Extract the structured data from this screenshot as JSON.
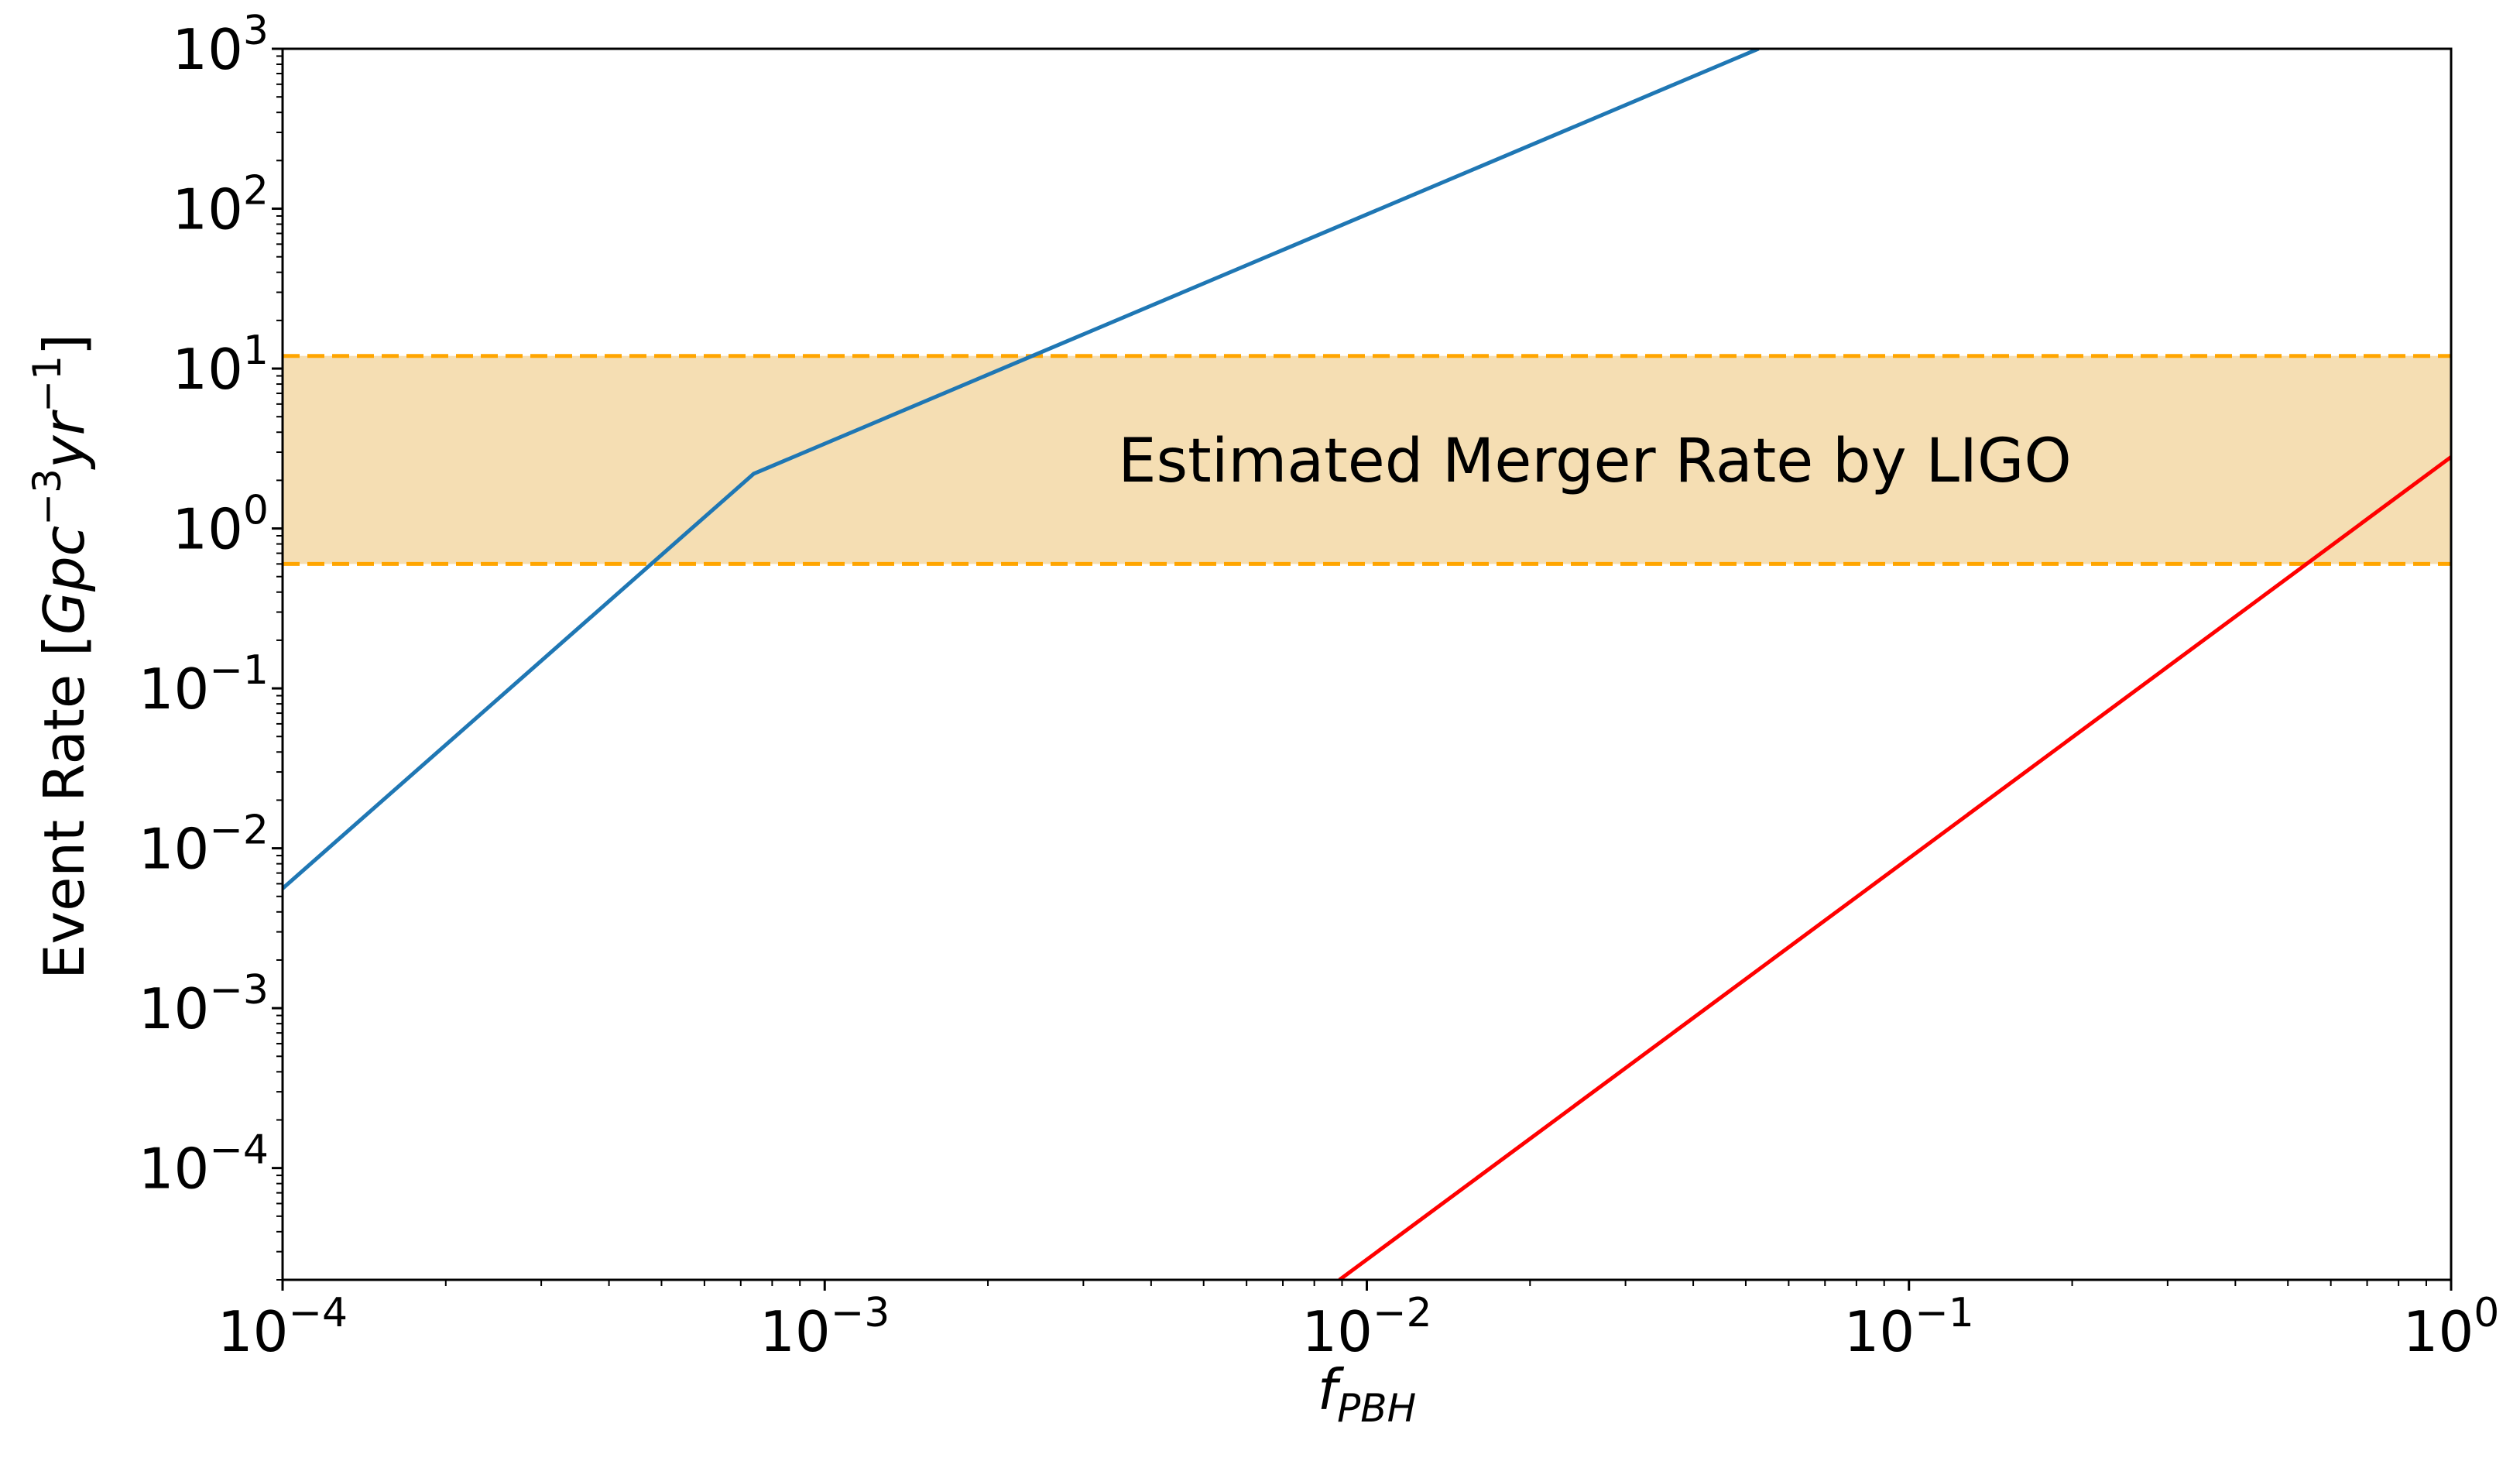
{
  "chart_data": {
    "type": "line",
    "title": "",
    "xlabel": "f",
    "xlabel_sub": "PBH",
    "ylabel": "Event Rate [",
    "ylabel_unit": {
      "g": "Gpc",
      "e1": "−3",
      "y": "yr",
      "e2": "−1",
      "close": "]"
    },
    "xscale": "log",
    "yscale": "log",
    "xlim": [
      0.0001,
      1
    ],
    "ylim": [
      2e-05,
      1000
    ],
    "grid": false,
    "x_ticks": [
      {
        "value": 0.0001,
        "base": "10",
        "exp": "−4"
      },
      {
        "value": 0.001,
        "base": "10",
        "exp": "−3"
      },
      {
        "value": 0.01,
        "base": "10",
        "exp": "−2"
      },
      {
        "value": 0.1,
        "base": "10",
        "exp": "−1"
      },
      {
        "value": 1,
        "base": "10",
        "exp": "0"
      }
    ],
    "y_ticks": [
      {
        "value": 0.0001,
        "base": "10",
        "exp": "−4"
      },
      {
        "value": 0.001,
        "base": "10",
        "exp": "−3"
      },
      {
        "value": 0.01,
        "base": "10",
        "exp": "−2"
      },
      {
        "value": 0.1,
        "base": "10",
        "exp": "−1"
      },
      {
        "value": 1,
        "base": "10",
        "exp": "0"
      },
      {
        "value": 10,
        "base": "10",
        "exp": "1"
      },
      {
        "value": 100,
        "base": "10",
        "exp": "2"
      },
      {
        "value": 1000,
        "base": "10",
        "exp": "3"
      }
    ],
    "band": {
      "ymin": 0.6,
      "ymax": 12,
      "label": "Estimated Merger Rate by LIGO",
      "fill_color": "#f5deb3",
      "line_color": "#ffa500"
    },
    "series": [
      {
        "color": "#1f77b4",
        "x": [
          0.0001,
          0.00074,
          0.0528
        ],
        "y": [
          0.0056,
          2.2,
          1000
        ]
      },
      {
        "color": "#ff0000",
        "x": [
          0.0089,
          1.0
        ],
        "y": [
          2e-05,
          2.8
        ]
      }
    ],
    "colors": {
      "axis": "#000000",
      "background": "#ffffff"
    }
  }
}
